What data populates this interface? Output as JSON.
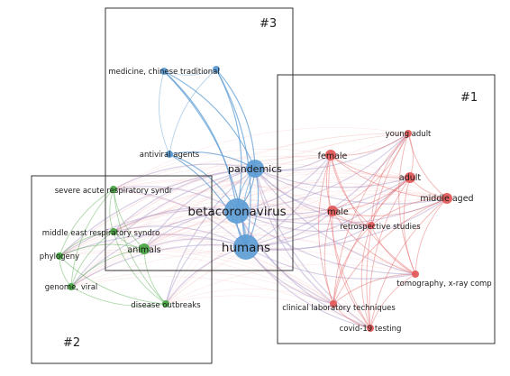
{
  "colors": {
    "cluster1": "#e35b5b",
    "cluster2": "#49a644",
    "cluster3": "#5a9bd4",
    "box": "#333333",
    "edge_mix": "#b7a7cf"
  },
  "boxes": [
    {
      "id": "box1",
      "label": "#1"
    },
    {
      "id": "box2",
      "label": "#2"
    },
    {
      "id": "box3",
      "label": "#3"
    }
  ],
  "nodes": [
    {
      "id": "betacoronavirus",
      "label": "betacoronavirus",
      "cluster": 3,
      "size": "xl"
    },
    {
      "id": "humans",
      "label": "humans",
      "cluster": 3,
      "size": "xl"
    },
    {
      "id": "pandemics",
      "label": "pandemics",
      "cluster": 3,
      "size": "l"
    },
    {
      "id": "medicine-chinese",
      "label": "medicine, chinese traditional",
      "cluster": 3,
      "size": "s"
    },
    {
      "id": "med2",
      "label": "",
      "cluster": 3,
      "size": "s"
    },
    {
      "id": "antiviral",
      "label": "antiviral agents",
      "cluster": 3,
      "size": "s"
    },
    {
      "id": "female",
      "label": "female",
      "cluster": 1,
      "size": "m"
    },
    {
      "id": "male",
      "label": "male",
      "cluster": 1,
      "size": "m"
    },
    {
      "id": "adult",
      "label": "adult",
      "cluster": 1,
      "size": "m"
    },
    {
      "id": "young-adult",
      "label": "young adult",
      "cluster": 1,
      "size": "s"
    },
    {
      "id": "middle-aged",
      "label": "middle aged",
      "cluster": 1,
      "size": "m"
    },
    {
      "id": "retrospective",
      "label": "retrospective studies",
      "cluster": 1,
      "size": "s"
    },
    {
      "id": "tomography",
      "label": "tomography, x-ray comp",
      "cluster": 1,
      "size": "s"
    },
    {
      "id": "clinical-lab",
      "label": "clinical laboratory techniques",
      "cluster": 1,
      "size": "s"
    },
    {
      "id": "covid-testing",
      "label": "covid-19 testing",
      "cluster": 1,
      "size": "s"
    },
    {
      "id": "sars",
      "label": "severe acute respiratory syndr",
      "cluster": 2,
      "size": "s"
    },
    {
      "id": "mers",
      "label": "middle east respiratory syndro",
      "cluster": 2,
      "size": "s"
    },
    {
      "id": "animals",
      "label": "animals",
      "cluster": 2,
      "size": "m"
    },
    {
      "id": "phylogeny",
      "label": "phylogeny",
      "cluster": 2,
      "size": "s"
    },
    {
      "id": "genome",
      "label": "genome, viral",
      "cluster": 2,
      "size": "s"
    },
    {
      "id": "outbreaks",
      "label": "disease outbreaks",
      "cluster": 2,
      "size": "s"
    }
  ]
}
